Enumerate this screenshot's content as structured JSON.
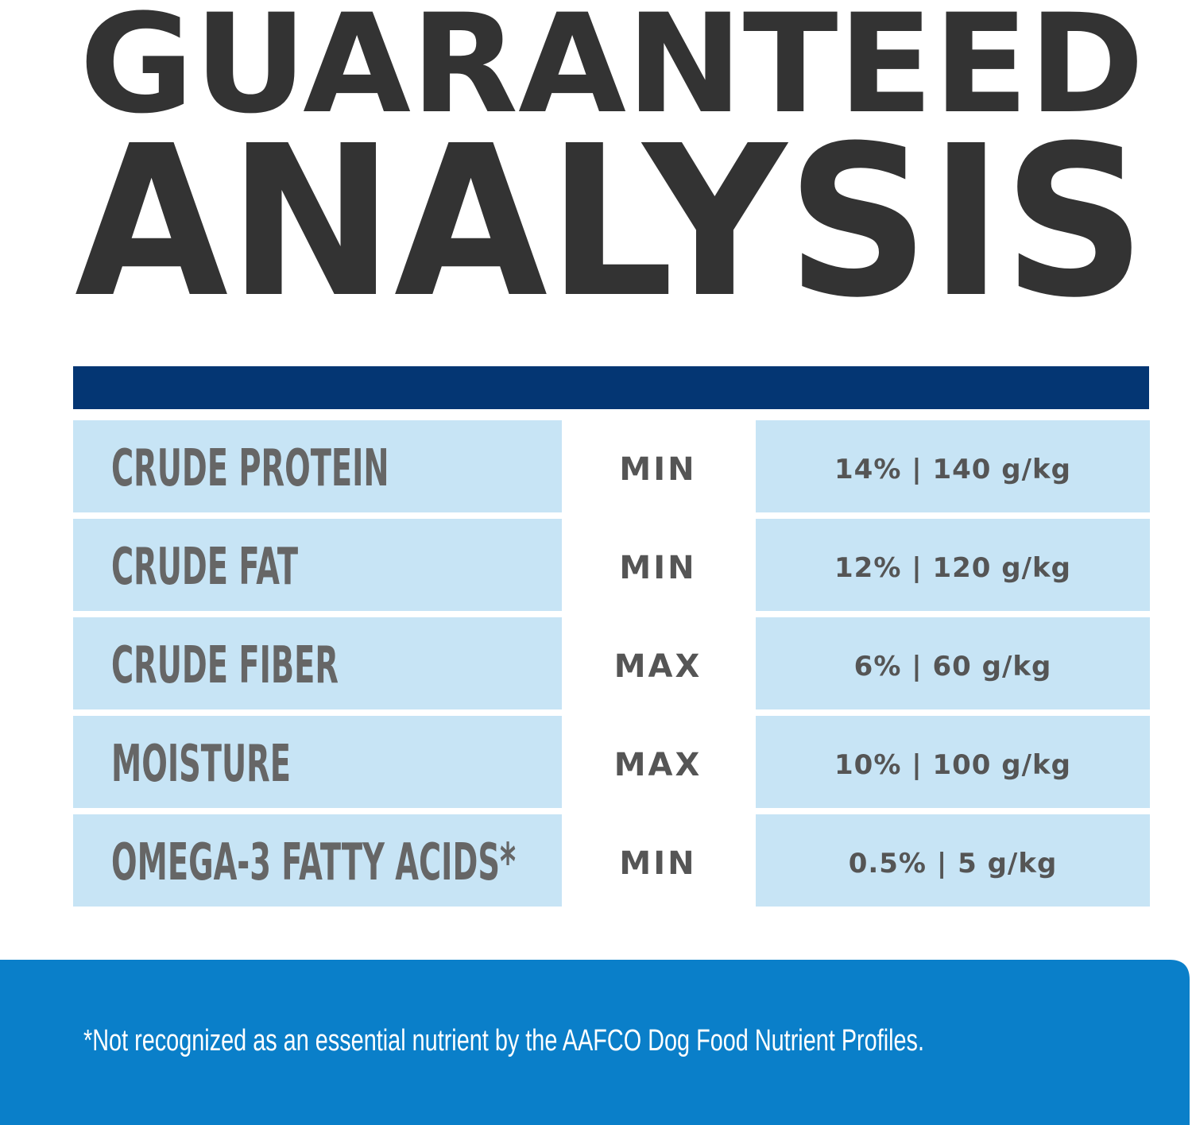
{
  "header": {
    "title": [
      "GUARANTEED",
      "ANALYSIS"
    ]
  },
  "table": {
    "rows": [
      [
        "CRUDE PROTEIN",
        "MIN",
        "14% | 140 g/kg"
      ],
      [
        "CRUDE FAT",
        "MIN",
        "12% | 120 g/kg"
      ],
      [
        "CRUDE FIBER",
        "MAX",
        "6% | 60 g/kg"
      ],
      [
        "MOISTURE",
        "MAX",
        "10% | 100 g/kg"
      ],
      [
        "OMEGA-3 FATTY ACIDS*",
        "MIN",
        "0.5% | 5 g/kg"
      ]
    ]
  },
  "footnote": "*Not recognized as an essential nutrient by the AAFCO Dog Food Nutrient Profiles."
}
